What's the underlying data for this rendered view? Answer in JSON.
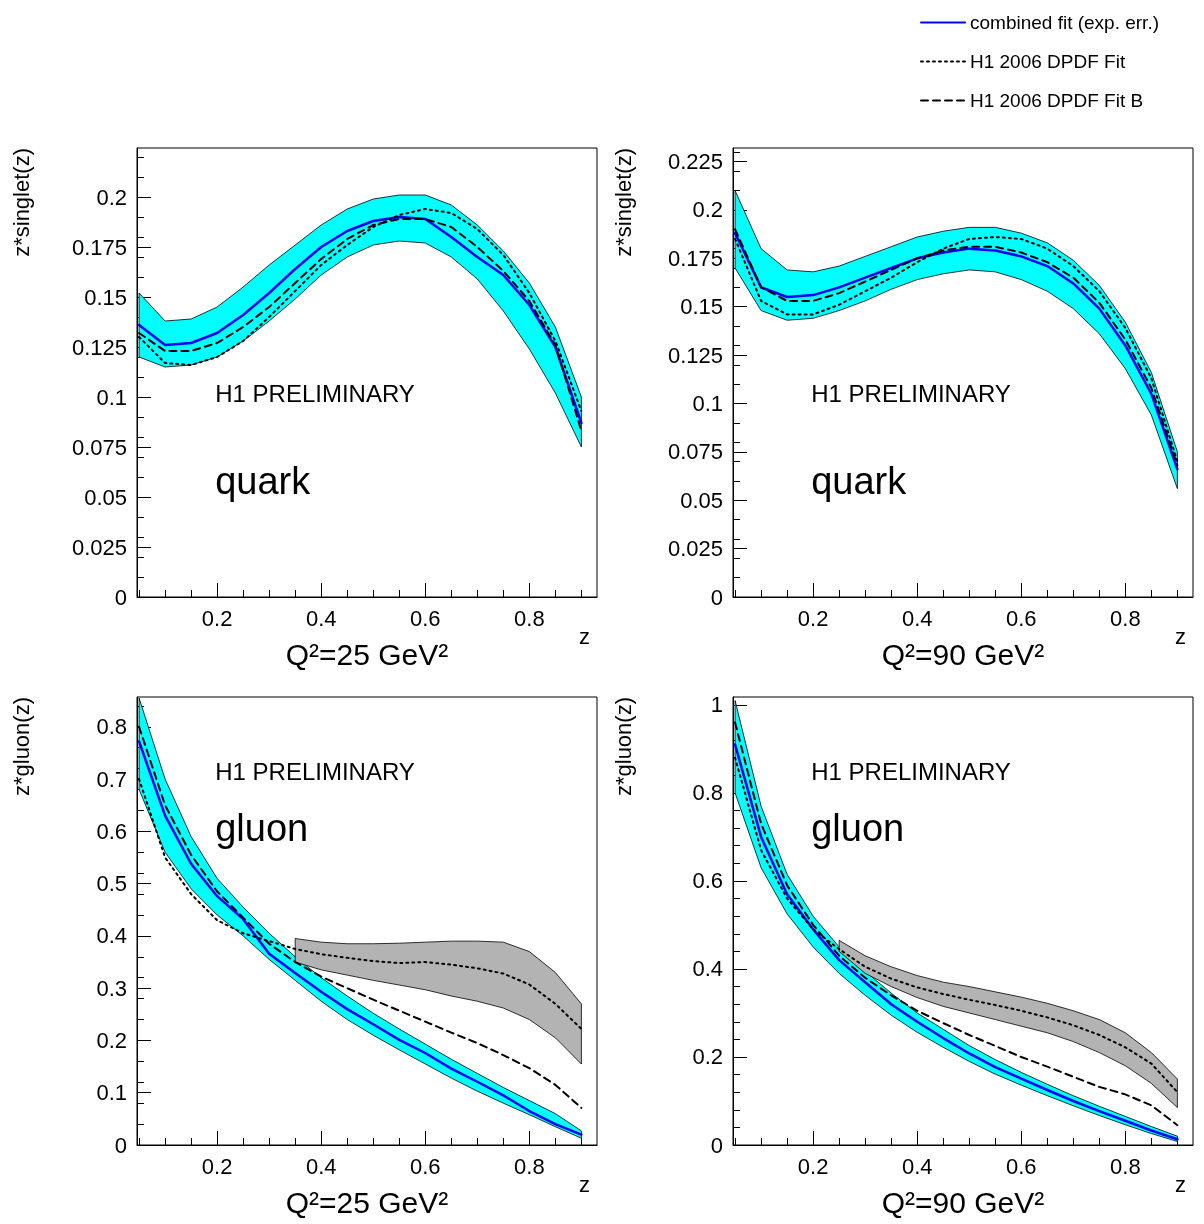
{
  "chart_data": [
    {
      "type": "line",
      "ylabel": "z*singlet(z)",
      "xlabel": "z",
      "marker": "none",
      "annotations": [
        "H1 PRELIMINARY",
        "quark",
        "Q²=25 GeV²"
      ],
      "x": [
        0.05,
        0.1,
        0.15,
        0.2,
        0.25,
        0.3,
        0.35,
        0.4,
        0.45,
        0.5,
        0.55,
        0.6,
        0.65,
        0.7,
        0.75,
        0.8,
        0.85,
        0.9
      ],
      "xlim": [
        0.046,
        0.93
      ],
      "xticks": [
        0.2,
        0.4,
        0.6,
        0.8
      ],
      "ylim": [
        0,
        0.2245
      ],
      "yticks": [
        0,
        0.025,
        0.05,
        0.075,
        0.1,
        0.125,
        0.15,
        0.175,
        0.2
      ],
      "series": [
        {
          "color": "#0000ff",
          "line_style": "solid",
          "values": [
            0.136,
            0.126,
            0.127,
            0.132,
            0.141,
            0.152,
            0.164,
            0.175,
            0.183,
            0.188,
            0.19,
            0.189,
            0.18,
            0.17,
            0.161,
            0.146,
            0.125,
            0.087
          ],
          "upper": [
            0.152,
            0.138,
            0.139,
            0.145,
            0.155,
            0.166,
            0.176,
            0.186,
            0.194,
            0.199,
            0.201,
            0.201,
            0.196,
            0.186,
            0.173,
            0.157,
            0.135,
            0.1
          ],
          "lower": [
            0.12,
            0.115,
            0.116,
            0.12,
            0.128,
            0.138,
            0.149,
            0.161,
            0.17,
            0.176,
            0.178,
            0.177,
            0.17,
            0.159,
            0.143,
            0.124,
            0.102,
            0.075
          ]
        },
        {
          "color": "#000000",
          "line_style": "dotted",
          "values": [
            0.13,
            0.117,
            0.116,
            0.12,
            0.128,
            0.14,
            0.153,
            0.166,
            0.176,
            0.185,
            0.191,
            0.194,
            0.192,
            0.184,
            0.171,
            0.152,
            0.128,
            0.093
          ]
        },
        {
          "color": "#000000",
          "line_style": "dashed",
          "values": [
            0.132,
            0.123,
            0.123,
            0.127,
            0.135,
            0.145,
            0.157,
            0.169,
            0.179,
            0.186,
            0.189,
            0.189,
            0.185,
            0.175,
            0.163,
            0.148,
            0.126,
            0.083
          ]
        }
      ]
    },
    {
      "type": "line",
      "ylabel": "z*singlet(z)",
      "xlabel": "z",
      "marker": "none",
      "legend": "top right",
      "annotations": [
        "H1 PRELIMINARY",
        "quark",
        "Q²=90 GeV²"
      ],
      "x": [
        0.05,
        0.1,
        0.15,
        0.2,
        0.25,
        0.3,
        0.35,
        0.4,
        0.45,
        0.5,
        0.55,
        0.6,
        0.65,
        0.7,
        0.75,
        0.8,
        0.85,
        0.9
      ],
      "xlim": [
        0.046,
        0.93
      ],
      "xticks": [
        0.2,
        0.4,
        0.6,
        0.8
      ],
      "ylim": [
        0,
        0.232
      ],
      "yticks": [
        0,
        0.025,
        0.05,
        0.075,
        0.1,
        0.125,
        0.15,
        0.175,
        0.2,
        0.225
      ],
      "series": [
        {
          "name": "combined fit (exp. err.)",
          "color": "#0000ff",
          "line_style": "solid",
          "values": [
            0.188,
            0.16,
            0.155,
            0.156,
            0.16,
            0.165,
            0.17,
            0.175,
            0.178,
            0.18,
            0.179,
            0.176,
            0.171,
            0.162,
            0.149,
            0.13,
            0.105,
            0.066
          ],
          "upper": [
            0.21,
            0.18,
            0.169,
            0.168,
            0.171,
            0.176,
            0.181,
            0.186,
            0.189,
            0.191,
            0.191,
            0.188,
            0.183,
            0.174,
            0.161,
            0.142,
            0.116,
            0.075
          ],
          "lower": [
            0.17,
            0.148,
            0.143,
            0.144,
            0.148,
            0.153,
            0.159,
            0.164,
            0.167,
            0.169,
            0.168,
            0.164,
            0.158,
            0.149,
            0.136,
            0.118,
            0.094,
            0.056
          ]
        },
        {
          "name": "H1 2006 DPDF Fit",
          "color": "#000000",
          "line_style": "dotted",
          "values": [
            0.185,
            0.153,
            0.146,
            0.146,
            0.151,
            0.158,
            0.165,
            0.173,
            0.18,
            0.185,
            0.186,
            0.185,
            0.18,
            0.171,
            0.158,
            0.139,
            0.113,
            0.07
          ]
        },
        {
          "name": "H1 2006 DPDF Fit B",
          "color": "#000000",
          "line_style": "dashed",
          "values": [
            0.19,
            0.16,
            0.153,
            0.153,
            0.157,
            0.163,
            0.169,
            0.175,
            0.179,
            0.181,
            0.181,
            0.178,
            0.173,
            0.165,
            0.152,
            0.133,
            0.108,
            0.068
          ]
        }
      ]
    },
    {
      "type": "line",
      "ylabel": "z*gluon(z)",
      "xlabel": "z",
      "marker": "none",
      "annotations": [
        "H1 PRELIMINARY",
        "gluon",
        "Q²=25 GeV²"
      ],
      "x": [
        0.05,
        0.1,
        0.15,
        0.2,
        0.25,
        0.3,
        0.35,
        0.4,
        0.45,
        0.5,
        0.55,
        0.6,
        0.65,
        0.7,
        0.75,
        0.8,
        0.85,
        0.9
      ],
      "xlim": [
        0.046,
        0.93
      ],
      "xticks": [
        0.2,
        0.4,
        0.6,
        0.8
      ],
      "ylim": [
        0,
        0.857
      ],
      "yticks": [
        0,
        0.1,
        0.2,
        0.3,
        0.4,
        0.5,
        0.6,
        0.7,
        0.8
      ],
      "series": [
        {
          "color": "#0000ff",
          "line_style": "solid",
          "values": [
            0.772,
            0.63,
            0.538,
            0.476,
            0.432,
            0.366,
            0.329,
            0.293,
            0.26,
            0.231,
            0.201,
            0.176,
            0.146,
            0.121,
            0.095,
            0.065,
            0.04,
            0.02
          ],
          "upper": [
            0.855,
            0.7,
            0.59,
            0.51,
            0.455,
            0.405,
            0.36,
            0.32,
            0.285,
            0.252,
            0.222,
            0.193,
            0.164,
            0.137,
            0.11,
            0.085,
            0.06,
            0.027
          ],
          "lower": [
            0.68,
            0.56,
            0.49,
            0.44,
            0.4,
            0.355,
            0.315,
            0.275,
            0.24,
            0.21,
            0.182,
            0.155,
            0.128,
            0.103,
            0.08,
            0.058,
            0.035,
            0.013
          ]
        },
        {
          "color": "#000000",
          "line_style": "dotted",
          "values": [
            0.7,
            0.55,
            0.48,
            0.43,
            0.405,
            0.39,
            0.375,
            0.365,
            0.358,
            0.352,
            0.348,
            0.35,
            0.345,
            0.338,
            0.328,
            0.307,
            0.27,
            0.222
          ],
          "upper": [
            null,
            null,
            null,
            null,
            null,
            null,
            0.395,
            0.388,
            0.385,
            0.385,
            0.386,
            0.388,
            0.39,
            0.39,
            0.388,
            0.37,
            0.33,
            0.27
          ],
          "lower": [
            null,
            null,
            null,
            null,
            null,
            null,
            0.35,
            0.335,
            0.325,
            0.315,
            0.306,
            0.297,
            0.285,
            0.275,
            0.262,
            0.24,
            0.205,
            0.155
          ]
        },
        {
          "color": "#000000",
          "line_style": "dashed",
          "values": [
            0.8,
            0.65,
            0.555,
            0.485,
            0.435,
            0.385,
            0.35,
            0.322,
            0.3,
            0.278,
            0.257,
            0.236,
            0.215,
            0.195,
            0.172,
            0.147,
            0.115,
            0.071
          ]
        }
      ]
    },
    {
      "type": "line",
      "ylabel": "z*gluon(z)",
      "xlabel": "z",
      "marker": "none",
      "annotations": [
        "H1 PRELIMINARY",
        "gluon",
        "Q²=90 GeV²"
      ],
      "x": [
        0.05,
        0.1,
        0.15,
        0.2,
        0.25,
        0.3,
        0.35,
        0.4,
        0.45,
        0.5,
        0.55,
        0.6,
        0.65,
        0.7,
        0.75,
        0.8,
        0.85,
        0.9
      ],
      "xlim": [
        0.046,
        0.93
      ],
      "xticks": [
        0.2,
        0.4,
        0.6,
        0.8
      ],
      "ylim": [
        0,
        1.018
      ],
      "yticks": [
        0,
        0.2,
        0.4,
        0.6,
        0.8,
        1
      ],
      "series": [
        {
          "color": "#0000ff",
          "line_style": "solid",
          "values": [
            0.91,
            0.7,
            0.57,
            0.49,
            0.42,
            0.37,
            0.32,
            0.28,
            0.243,
            0.208,
            0.177,
            0.151,
            0.125,
            0.1,
            0.077,
            0.055,
            0.033,
            0.013
          ],
          "upper": [
            1.01,
            0.77,
            0.615,
            0.52,
            0.45,
            0.395,
            0.345,
            0.3,
            0.263,
            0.226,
            0.194,
            0.165,
            0.138,
            0.112,
            0.088,
            0.065,
            0.042,
            0.02
          ],
          "lower": [
            0.8,
            0.63,
            0.525,
            0.45,
            0.39,
            0.34,
            0.295,
            0.256,
            0.222,
            0.19,
            0.161,
            0.136,
            0.112,
            0.089,
            0.067,
            0.046,
            0.026,
            0.008
          ]
        },
        {
          "color": "#000000",
          "line_style": "dotted",
          "values": [
            0.88,
            0.67,
            0.56,
            0.49,
            0.445,
            0.405,
            0.378,
            0.358,
            0.343,
            0.33,
            0.318,
            0.305,
            0.29,
            0.272,
            0.25,
            0.222,
            0.185,
            0.12
          ],
          "upper": [
            null,
            null,
            null,
            null,
            0.465,
            0.43,
            0.405,
            0.385,
            0.37,
            0.36,
            0.348,
            0.336,
            0.322,
            0.305,
            0.285,
            0.255,
            0.21,
            0.15
          ],
          "lower": [
            null,
            null,
            null,
            null,
            0.44,
            0.39,
            0.36,
            0.335,
            0.315,
            0.3,
            0.285,
            0.27,
            0.255,
            0.235,
            0.21,
            0.18,
            0.14,
            0.085
          ]
        },
        {
          "color": "#000000",
          "line_style": "dashed",
          "values": [
            0.96,
            0.73,
            0.59,
            0.5,
            0.43,
            0.38,
            0.34,
            0.305,
            0.277,
            0.25,
            0.225,
            0.2,
            0.178,
            0.155,
            0.132,
            0.115,
            0.09,
            0.045
          ]
        }
      ]
    }
  ]
}
